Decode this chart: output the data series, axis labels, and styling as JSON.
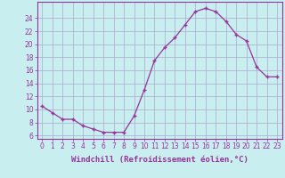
{
  "x": [
    0,
    1,
    2,
    3,
    4,
    5,
    6,
    7,
    8,
    9,
    10,
    11,
    12,
    13,
    14,
    15,
    16,
    17,
    18,
    19,
    20,
    21,
    22,
    23
  ],
  "y": [
    10.5,
    9.5,
    8.5,
    8.5,
    7.5,
    7.0,
    6.5,
    6.5,
    6.5,
    9.0,
    13.0,
    17.5,
    19.5,
    21.0,
    23.0,
    25.0,
    25.5,
    25.0,
    23.5,
    21.5,
    20.5,
    16.5,
    15.0,
    15.0
  ],
  "line_color": "#993399",
  "marker": "+",
  "marker_size": 3,
  "background_color": "#c8eef0",
  "grid_color": "#aaaacc",
  "xlabel": "Windchill (Refroidissement éolien,°C)",
  "xlabel_fontsize": 6.5,
  "xlim": [
    -0.5,
    23.5
  ],
  "ylim": [
    5.5,
    26.5
  ],
  "xticks": [
    0,
    1,
    2,
    3,
    4,
    5,
    6,
    7,
    8,
    9,
    10,
    11,
    12,
    13,
    14,
    15,
    16,
    17,
    18,
    19,
    20,
    21,
    22,
    23
  ],
  "yticks": [
    6,
    8,
    10,
    12,
    14,
    16,
    18,
    20,
    22,
    24
  ],
  "tick_fontsize": 5.5,
  "tick_color": "#993399",
  "spine_color": "#993399"
}
